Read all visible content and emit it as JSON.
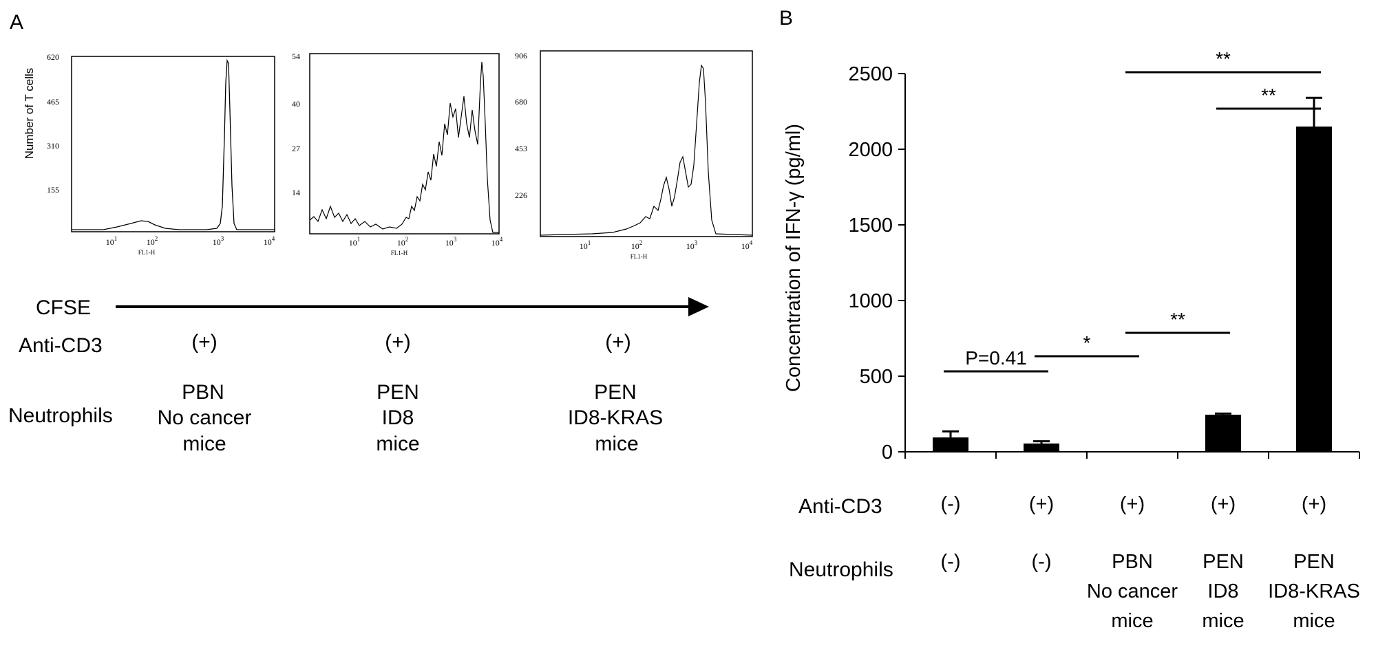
{
  "panel_a": {
    "label": "A",
    "y_axis_label": "Number of  T cells",
    "x_axis_label": "FL1-H",
    "x_ticks": [
      "10",
      "10",
      "10",
      "10"
    ],
    "x_tick_exponents": [
      "1",
      "2",
      "3",
      "4"
    ],
    "histograms": [
      {
        "y_ticks": [
          "620",
          "465",
          "310",
          "155"
        ]
      },
      {
        "y_ticks": [
          "54",
          "40",
          "27",
          "14"
        ]
      },
      {
        "y_ticks": [
          "906",
          "680",
          "453",
          "226"
        ]
      }
    ],
    "arrow_label": "CFSE",
    "row_labels": {
      "anti_cd3": "Anti-CD3",
      "neutrophils": "Neutrophils"
    },
    "conditions": [
      {
        "anti_cd3": "(+)",
        "neutrophils": [
          "PBN",
          "No cancer",
          "mice"
        ]
      },
      {
        "anti_cd3": "(+)",
        "neutrophils": [
          "PEN",
          "ID8",
          "mice"
        ]
      },
      {
        "anti_cd3": "(+)",
        "neutrophils": [
          "PEN",
          "ID8-KRAS",
          "mice"
        ]
      }
    ]
  },
  "panel_b": {
    "label": "B",
    "row_labels": {
      "anti_cd3": "Anti-CD3",
      "neutrophils": "Neutrophils"
    },
    "groups": [
      {
        "anti_cd3": "(-)",
        "neutrophils": [
          "(-)"
        ]
      },
      {
        "anti_cd3": "(+)",
        "neutrophils": [
          "(-)"
        ]
      },
      {
        "anti_cd3": "(+)",
        "neutrophils": [
          "PBN",
          "No cancer",
          "mice"
        ]
      },
      {
        "anti_cd3": "(+)",
        "neutrophils": [
          "PEN",
          "ID8",
          "mice"
        ]
      },
      {
        "anti_cd3": "(+)",
        "neutrophils": [
          "PEN",
          "ID8-KRAS",
          "mice"
        ]
      }
    ],
    "significance": [
      {
        "from": 0,
        "to": 1,
        "label": "P=0.41"
      },
      {
        "from": 1,
        "to": 2,
        "label": "*"
      },
      {
        "from": 2,
        "to": 3,
        "label": "**"
      },
      {
        "from": 3,
        "to": 4,
        "label": "**"
      },
      {
        "from": 2,
        "to": 4,
        "label": "**"
      }
    ]
  },
  "chart_data": {
    "type": "bar",
    "categories": [
      "1",
      "2",
      "3",
      "4",
      "5"
    ],
    "values": [
      95,
      55,
      0,
      245,
      2150
    ],
    "errors": [
      40,
      15,
      0,
      8,
      190
    ],
    "ylabel": "Concentration of IFN-γ (pg/ml)",
    "xlabel": "",
    "ylim": [
      0,
      2500
    ],
    "yticks": [
      0,
      500,
      1000,
      1500,
      2000,
      2500
    ],
    "bar_color": "#000000",
    "grid": false
  }
}
